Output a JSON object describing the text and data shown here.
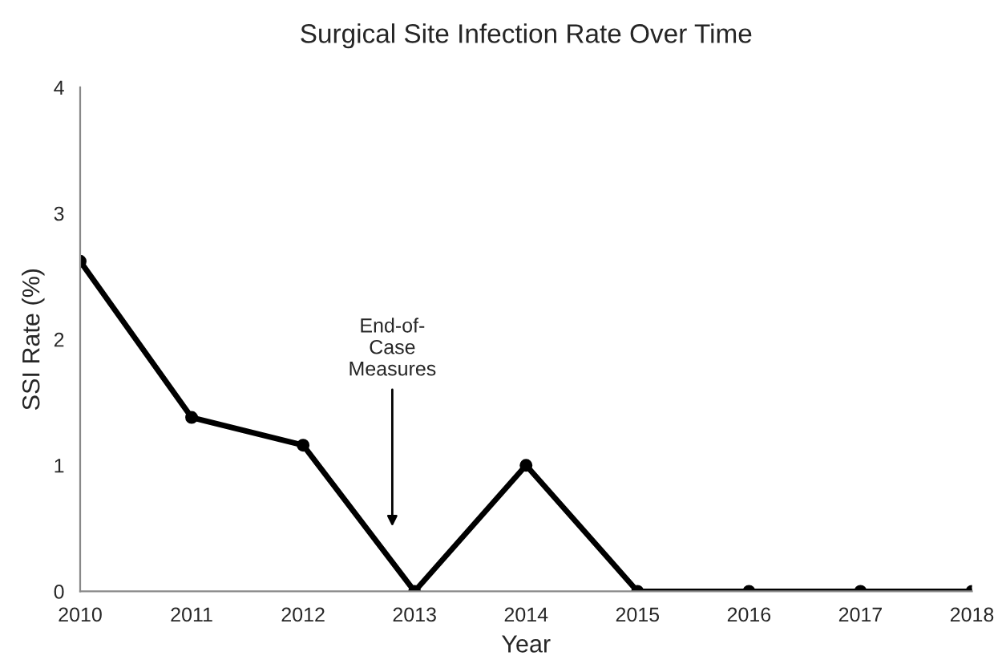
{
  "chart_data": {
    "type": "line",
    "title": "Surgical Site Infection Rate Over Time",
    "xlabel": "Year",
    "ylabel": "SSI Rate (%)",
    "x": [
      2010,
      2011,
      2012,
      2013,
      2014,
      2015,
      2016,
      2017,
      2018
    ],
    "series": [
      {
        "color": "#000000",
        "values": [
          2.62,
          1.38,
          1.16,
          0,
          1.0,
          0,
          0,
          0,
          0
        ]
      }
    ],
    "xlim": [
      2010,
      2018
    ],
    "xticks": [
      2010,
      2011,
      2012,
      2013,
      2014,
      2015,
      2016,
      2017,
      2018
    ],
    "ylim": [
      0,
      4
    ],
    "yticks": [
      0,
      1,
      2,
      3,
      4
    ],
    "annotations": [
      "End-of-\nCase\nMeasures"
    ],
    "marker": "circle",
    "line_style": "solid",
    "grid": false,
    "legend": false
  }
}
